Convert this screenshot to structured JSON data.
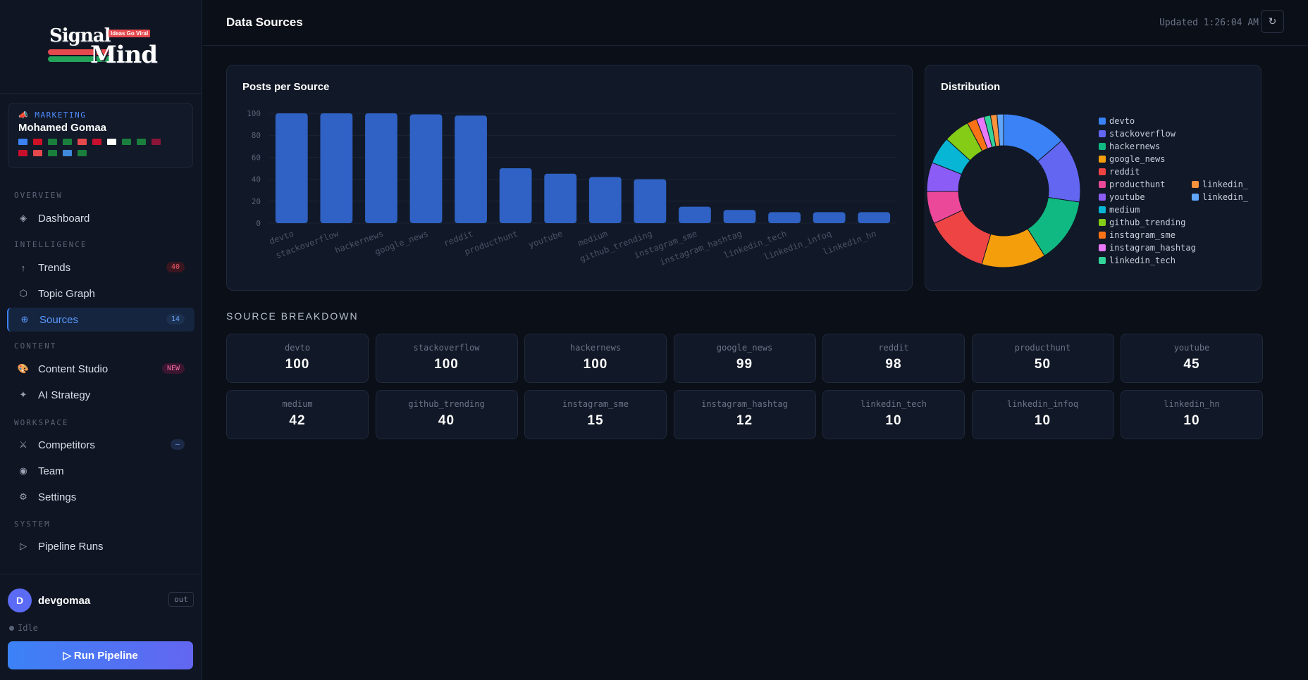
{
  "brand": {
    "word1": "Signal",
    "word2": "Mind",
    "tagline": "Ideas Go Viral"
  },
  "profile": {
    "role": "📣 MARKETING",
    "name": "Mohamed Gomaa",
    "flag_colors": [
      "#3b82f6",
      "#ce1126",
      "#1a7f3c",
      "#1a7f3c",
      "#e5484d",
      "#c8102e",
      "#ffffff",
      "#1a7f3c",
      "#1a7f3c",
      "#8a1538",
      "#c8102e",
      "#e5484d",
      "#1a7f3c",
      "#4189dd",
      "#1a7f3c"
    ]
  },
  "nav": {
    "overview_label": "OVERVIEW",
    "dashboard": "Dashboard",
    "intelligence_label": "INTELLIGENCE",
    "trends": "Trends",
    "trends_badge": "40",
    "topic_graph": "Topic Graph",
    "sources": "Sources",
    "sources_badge": "14",
    "content_label": "CONTENT",
    "content_studio": "Content Studio",
    "content_studio_badge": "NEW",
    "ai_strategy": "AI Strategy",
    "workspace_label": "WORKSPACE",
    "competitors": "Competitors",
    "competitors_badge": "—",
    "team": "Team",
    "settings": "Settings",
    "system_label": "SYSTEM",
    "pipeline_runs": "Pipeline Runs"
  },
  "user": {
    "avatar_letter": "D",
    "name": "devgomaa",
    "out_label": "out",
    "status": "Idle"
  },
  "run_button": "▷  Run Pipeline",
  "header": {
    "title": "Data Sources",
    "updated": "Updated 1:26:04 AM",
    "refresh_icon": "↻"
  },
  "bar_card_title": "Posts per Source",
  "pie_card_title": "Distribution",
  "breakdown_title": "SOURCE BREAKDOWN",
  "chart_data": [
    {
      "type": "bar",
      "title": "Posts per Source",
      "categories": [
        "devto",
        "stackoverflow",
        "hackernews",
        "google_news",
        "reddit",
        "producthunt",
        "youtube",
        "medium",
        "github_trending",
        "instagram_sme",
        "instagram_hashtag",
        "linkedin_tech",
        "linkedin_infoq",
        "linkedin_hn"
      ],
      "values": [
        100,
        100,
        100,
        99,
        98,
        50,
        45,
        42,
        40,
        15,
        12,
        10,
        10,
        10
      ],
      "ylim": [
        0,
        100
      ],
      "yticks": [
        0,
        20,
        40,
        60,
        80,
        100
      ],
      "grid": true,
      "color": "#2f62c4"
    },
    {
      "type": "pie",
      "title": "Distribution",
      "donut": true,
      "labels": [
        "devto",
        "stackoverflow",
        "hackernews",
        "google_news",
        "reddit",
        "producthunt",
        "youtube",
        "medium",
        "github_trending",
        "instagram_sme",
        "instagram_hashtag",
        "linkedin_tech",
        "linkedin_i",
        "linkedin_h"
      ],
      "values": [
        100,
        100,
        100,
        99,
        98,
        50,
        45,
        42,
        40,
        15,
        12,
        10,
        10,
        10
      ],
      "colors": [
        "#3b82f6",
        "#6366f1",
        "#10b981",
        "#f59e0b",
        "#ef4444",
        "#ec4899",
        "#8b5cf6",
        "#06b6d4",
        "#84cc16",
        "#f97316",
        "#e879f9",
        "#34d399",
        "#fb923c",
        "#60a5fa"
      ],
      "legend": "right"
    }
  ],
  "sources": [
    {
      "name": "devto",
      "value": "100"
    },
    {
      "name": "stackoverflow",
      "value": "100"
    },
    {
      "name": "hackernews",
      "value": "100"
    },
    {
      "name": "google_news",
      "value": "99"
    },
    {
      "name": "reddit",
      "value": "98"
    },
    {
      "name": "producthunt",
      "value": "50"
    },
    {
      "name": "youtube",
      "value": "45"
    },
    {
      "name": "medium",
      "value": "42"
    },
    {
      "name": "github_trending",
      "value": "40"
    },
    {
      "name": "instagram_sme",
      "value": "15"
    },
    {
      "name": "instagram_hashtag",
      "value": "12"
    },
    {
      "name": "linkedin_tech",
      "value": "10"
    },
    {
      "name": "linkedin_infoq",
      "value": "10"
    },
    {
      "name": "linkedin_hn",
      "value": "10"
    }
  ]
}
